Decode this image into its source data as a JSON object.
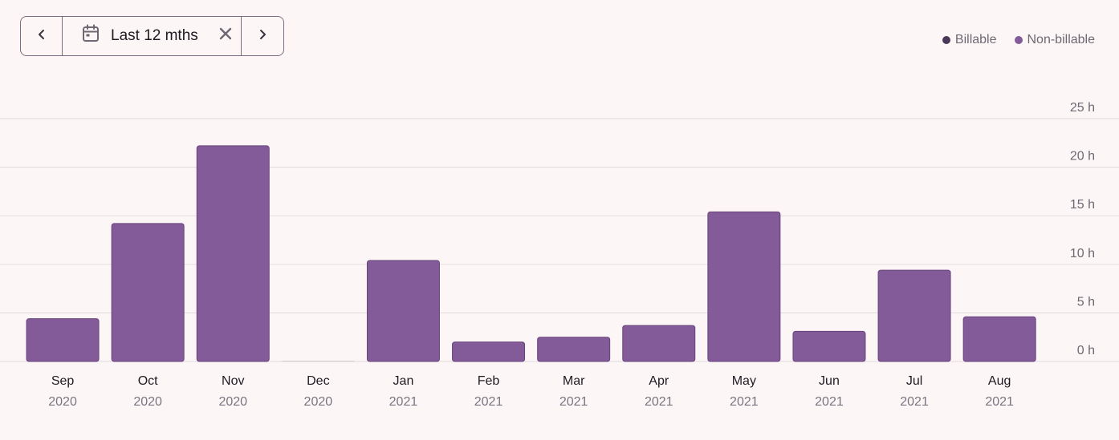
{
  "date_filter": {
    "range_label": "Last 12 mths",
    "prev_icon": "chevron-left-icon",
    "next_icon": "chevron-right-icon",
    "calendar_icon": "calendar-icon",
    "clear_icon": "close-icon"
  },
  "colors": {
    "billable": "#4a3858",
    "non_billable": "#825b98",
    "bar_stroke": "#6a447d",
    "grid": "#e6dfe2"
  },
  "chart_data": {
    "type": "bar",
    "categories": [
      "Sep",
      "Oct",
      "Nov",
      "Dec",
      "Jan",
      "Feb",
      "Mar",
      "Apr",
      "May",
      "Jun",
      "Jul",
      "Aug"
    ],
    "category_years": [
      "2020",
      "2020",
      "2020",
      "2020",
      "2021",
      "2021",
      "2021",
      "2021",
      "2021",
      "2021",
      "2021",
      "2021"
    ],
    "series": [
      {
        "name": "Billable",
        "values": [
          0,
          0,
          0,
          0,
          0,
          0,
          0,
          0,
          0,
          0,
          0,
          0
        ]
      },
      {
        "name": "Non-billable",
        "values": [
          4.4,
          14.2,
          22.2,
          0,
          10.4,
          2.0,
          2.5,
          3.7,
          15.4,
          3.1,
          9.4,
          4.6
        ]
      }
    ],
    "y_ticks": [
      {
        "value": 0,
        "label": "0 h"
      },
      {
        "value": 5,
        "label": "5 h"
      },
      {
        "value": 10,
        "label": "10 h"
      },
      {
        "value": 15,
        "label": "15 h"
      },
      {
        "value": 20,
        "label": "20 h"
      },
      {
        "value": 25,
        "label": "25 h"
      }
    ],
    "ylim": [
      0,
      25
    ],
    "grid": true,
    "legend": {
      "position": "top-right",
      "entries": [
        "Billable",
        "Non-billable"
      ]
    }
  }
}
